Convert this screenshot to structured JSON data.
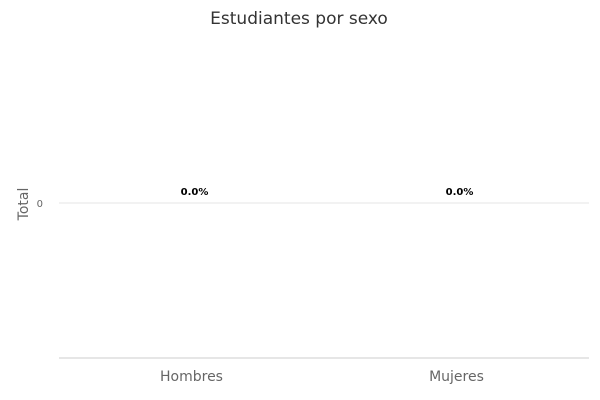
{
  "chart_data": {
    "type": "bar",
    "title": "Estudiantes por sexo",
    "xlabel": "",
    "ylabel": "Total",
    "categories": [
      "Hombres",
      "Mujeres"
    ],
    "values": [
      0,
      0
    ],
    "data_labels": [
      "0.0%",
      "0.0%"
    ],
    "y_ticks": [
      "0"
    ],
    "ylim": [
      -1,
      1
    ],
    "grid": true,
    "legend": "none",
    "colors": {
      "bar": "#4c72b0",
      "grid": "#e5e5e5",
      "axis": "#cccccc"
    }
  }
}
